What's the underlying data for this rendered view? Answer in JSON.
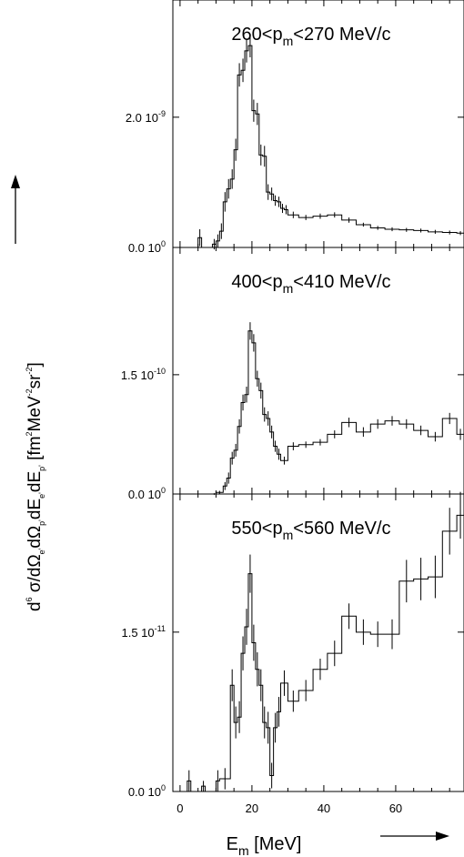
{
  "chart_data": [
    {
      "type": "histogram",
      "title_main": "260<p",
      "title_sub": "m",
      "title_tail": "<270 MeV/c",
      "ylim": [
        0,
        3.8e-09
      ],
      "yticks": [
        {
          "value": 0,
          "mant": "0.0 10",
          "exp": "0"
        },
        {
          "value": 2e-09,
          "mant": "2.0 10",
          "exp": "-9"
        }
      ],
      "bins": [
        {
          "x0": 5,
          "x1": 6,
          "y": 1.5e-10,
          "err": 1.3e-10
        },
        {
          "x0": 6,
          "x1": 9,
          "y": 0.0,
          "err": 0.0
        },
        {
          "x0": 9,
          "x1": 10,
          "y": 5e-11,
          "err": 8e-11
        },
        {
          "x0": 10,
          "x1": 11,
          "y": 1e-10,
          "err": 1e-10
        },
        {
          "x0": 11,
          "x1": 12,
          "y": 2.5e-10,
          "err": 1.2e-10
        },
        {
          "x0": 12,
          "x1": 13,
          "y": 7e-10,
          "err": 1.5e-10
        },
        {
          "x0": 13,
          "x1": 14,
          "y": 9e-10,
          "err": 1.5e-10
        },
        {
          "x0": 14,
          "x1": 15,
          "y": 1.05e-09,
          "err": 1.5e-10
        },
        {
          "x0": 15,
          "x1": 16,
          "y": 1.5e-09,
          "err": 1.7e-10
        },
        {
          "x0": 16,
          "x1": 17,
          "y": 2.65e-09,
          "err": 1.8e-10
        },
        {
          "x0": 17,
          "x1": 18,
          "y": 2.72e-09,
          "err": 1.8e-10
        },
        {
          "x0": 18,
          "x1": 19,
          "y": 3.02e-09,
          "err": 1.8e-10
        },
        {
          "x0": 19,
          "x1": 20,
          "y": 3.1e-09,
          "err": 1.8e-10
        },
        {
          "x0": 20,
          "x1": 21,
          "y": 2.1e-09,
          "err": 1.7e-10
        },
        {
          "x0": 21,
          "x1": 22,
          "y": 2.05e-09,
          "err": 1.7e-10
        },
        {
          "x0": 22,
          "x1": 23,
          "y": 1.42e-09,
          "err": 1.6e-10
        },
        {
          "x0": 23,
          "x1": 24,
          "y": 1.4e-09,
          "err": 1.6e-10
        },
        {
          "x0": 24,
          "x1": 25,
          "y": 8.5e-10,
          "err": 1.2e-10
        },
        {
          "x0": 25,
          "x1": 26,
          "y": 8.2e-10,
          "err": 1e-10
        },
        {
          "x0": 26,
          "x1": 27,
          "y": 7.2e-10,
          "err": 8e-11
        },
        {
          "x0": 27,
          "x1": 28,
          "y": 7e-10,
          "err": 8e-11
        },
        {
          "x0": 28,
          "x1": 29,
          "y": 6e-10,
          "err": 7e-11
        },
        {
          "x0": 29,
          "x1": 30,
          "y": 5.8e-10,
          "err": 7e-11
        },
        {
          "x0": 30,
          "x1": 33,
          "y": 5e-10,
          "err": 5e-11
        },
        {
          "x0": 33,
          "x1": 37,
          "y": 4.6e-10,
          "err": 4e-11
        },
        {
          "x0": 37,
          "x1": 41,
          "y": 4.8e-10,
          "err": 4e-11
        },
        {
          "x0": 41,
          "x1": 45,
          "y": 5e-10,
          "err": 4e-11
        },
        {
          "x0": 45,
          "x1": 49,
          "y": 4.2e-10,
          "err": 4e-11
        },
        {
          "x0": 49,
          "x1": 53,
          "y": 3.5e-10,
          "err": 3e-11
        },
        {
          "x0": 53,
          "x1": 57,
          "y": 3e-10,
          "err": 3e-11
        },
        {
          "x0": 57,
          "x1": 61,
          "y": 2.8e-10,
          "err": 3e-11
        },
        {
          "x0": 61,
          "x1": 65,
          "y": 2.7e-10,
          "err": 3e-11
        },
        {
          "x0": 65,
          "x1": 69,
          "y": 2.6e-10,
          "err": 3e-11
        },
        {
          "x0": 69,
          "x1": 73,
          "y": 2.4e-10,
          "err": 3e-11
        },
        {
          "x0": 73,
          "x1": 77,
          "y": 2.3e-10,
          "err": 3e-11
        },
        {
          "x0": 77,
          "x1": 79,
          "y": 2.2e-10,
          "err": 3e-11
        }
      ]
    },
    {
      "type": "histogram",
      "title_main": "400<p",
      "title_sub": "m",
      "title_tail": "<410 MeV/c",
      "ylim": [
        0,
        3.1e-10
      ],
      "yticks": [
        {
          "value": 0,
          "mant": "0.0 10",
          "exp": "0"
        },
        {
          "value": 1.5e-10,
          "mant": "1.5 10",
          "exp": "-10"
        }
      ],
      "bins": [
        {
          "x0": 9,
          "x1": 10,
          "y": 0.0,
          "err": 1e-12
        },
        {
          "x0": 10,
          "x1": 12,
          "y": 2e-12,
          "err": 2e-12
        },
        {
          "x0": 12,
          "x1": 13,
          "y": 1e-11,
          "err": 5e-12
        },
        {
          "x0": 13,
          "x1": 14,
          "y": 2e-11,
          "err": 7e-12
        },
        {
          "x0": 14,
          "x1": 15,
          "y": 4.5e-11,
          "err": 8e-12
        },
        {
          "x0": 15,
          "x1": 16,
          "y": 5.5e-11,
          "err": 8e-12
        },
        {
          "x0": 16,
          "x1": 17,
          "y": 8.5e-11,
          "err": 9e-12
        },
        {
          "x0": 17,
          "x1": 18,
          "y": 1.15e-10,
          "err": 1e-11
        },
        {
          "x0": 18,
          "x1": 19,
          "y": 1.25e-10,
          "err": 1e-11
        },
        {
          "x0": 19,
          "x1": 20,
          "y": 2.05e-10,
          "err": 1.1e-11
        },
        {
          "x0": 20,
          "x1": 21,
          "y": 1.9e-10,
          "err": 1.1e-11
        },
        {
          "x0": 21,
          "x1": 22,
          "y": 1.45e-10,
          "err": 1e-11
        },
        {
          "x0": 22,
          "x1": 23,
          "y": 1.3e-10,
          "err": 1e-11
        },
        {
          "x0": 23,
          "x1": 24,
          "y": 1e-10,
          "err": 9e-12
        },
        {
          "x0": 24,
          "x1": 25,
          "y": 9.5e-11,
          "err": 9e-12
        },
        {
          "x0": 25,
          "x1": 26,
          "y": 7.8e-11,
          "err": 8e-12
        },
        {
          "x0": 26,
          "x1": 27,
          "y": 6e-11,
          "err": 7e-12
        },
        {
          "x0": 27,
          "x1": 28,
          "y": 5e-11,
          "err": 7e-12
        },
        {
          "x0": 28,
          "x1": 30,
          "y": 4.2e-11,
          "err": 5e-12
        },
        {
          "x0": 30,
          "x1": 33,
          "y": 6e-11,
          "err": 5e-12
        },
        {
          "x0": 33,
          "x1": 37,
          "y": 6.2e-11,
          "err": 4e-12
        },
        {
          "x0": 37,
          "x1": 41,
          "y": 6.5e-11,
          "err": 4e-12
        },
        {
          "x0": 41,
          "x1": 45,
          "y": 7.5e-11,
          "err": 5e-12
        },
        {
          "x0": 45,
          "x1": 49,
          "y": 9e-11,
          "err": 6e-12
        },
        {
          "x0": 49,
          "x1": 53,
          "y": 7.8e-11,
          "err": 6e-12
        },
        {
          "x0": 53,
          "x1": 57,
          "y": 8.8e-11,
          "err": 6e-12
        },
        {
          "x0": 57,
          "x1": 61,
          "y": 9.2e-11,
          "err": 6e-12
        },
        {
          "x0": 61,
          "x1": 65,
          "y": 8.8e-11,
          "err": 6e-12
        },
        {
          "x0": 65,
          "x1": 69,
          "y": 8e-11,
          "err": 6e-12
        },
        {
          "x0": 69,
          "x1": 73,
          "y": 7.2e-11,
          "err": 6e-12
        },
        {
          "x0": 73,
          "x1": 77,
          "y": 9.5e-11,
          "err": 7e-12
        },
        {
          "x0": 77,
          "x1": 79,
          "y": 7.5e-11,
          "err": 7e-12
        }
      ]
    },
    {
      "type": "histogram",
      "title_main": "550<p",
      "title_sub": "m",
      "title_tail": "<560 MeV/c",
      "ylim": [
        0,
        2.8e-11
      ],
      "yticks": [
        {
          "value": 0,
          "mant": "0.0 10",
          "exp": "0"
        },
        {
          "value": 1.5e-11,
          "mant": "1.5 10",
          "exp": "-11"
        }
      ],
      "bins": [
        {
          "x0": 2,
          "x1": 3,
          "y": 1e-12,
          "err": 1e-12
        },
        {
          "x0": 3,
          "x1": 6,
          "y": 0.0,
          "err": 0.0
        },
        {
          "x0": 6,
          "x1": 7,
          "y": 5e-13,
          "err": 5e-13
        },
        {
          "x0": 7,
          "x1": 10,
          "y": 0.0,
          "err": 0.0
        },
        {
          "x0": 10,
          "x1": 11,
          "y": 1e-12,
          "err": 1e-12
        },
        {
          "x0": 11,
          "x1": 14,
          "y": 1.2e-12,
          "err": 1e-12
        },
        {
          "x0": 14,
          "x1": 15,
          "y": 1e-11,
          "err": 1.5e-12
        },
        {
          "x0": 15,
          "x1": 16,
          "y": 6.5e-12,
          "err": 1.5e-12
        },
        {
          "x0": 16,
          "x1": 17,
          "y": 7e-12,
          "err": 1.5e-12
        },
        {
          "x0": 17,
          "x1": 18,
          "y": 1.3e-11,
          "err": 1.6e-12
        },
        {
          "x0": 18,
          "x1": 19,
          "y": 1.55e-11,
          "err": 1.7e-12
        },
        {
          "x0": 19,
          "x1": 20,
          "y": 2.05e-11,
          "err": 1.8e-12
        },
        {
          "x0": 20,
          "x1": 21,
          "y": 1.4e-11,
          "err": 1.7e-12
        },
        {
          "x0": 21,
          "x1": 22,
          "y": 1.15e-11,
          "err": 1.6e-12
        },
        {
          "x0": 22,
          "x1": 23,
          "y": 1e-11,
          "err": 1.5e-12
        },
        {
          "x0": 23,
          "x1": 24,
          "y": 6.5e-12,
          "err": 1.5e-12
        },
        {
          "x0": 24,
          "x1": 25,
          "y": 6e-12,
          "err": 1.5e-12
        },
        {
          "x0": 25,
          "x1": 26,
          "y": 1.5e-12,
          "err": 1.2e-12
        },
        {
          "x0": 26,
          "x1": 27,
          "y": 6e-12,
          "err": 1.4e-12
        },
        {
          "x0": 27,
          "x1": 28,
          "y": 7.5e-12,
          "err": 1.4e-12
        },
        {
          "x0": 28,
          "x1": 30,
          "y": 1.02e-11,
          "err": 1.2e-12
        },
        {
          "x0": 30,
          "x1": 33,
          "y": 8.5e-12,
          "err": 1e-12
        },
        {
          "x0": 33,
          "x1": 37,
          "y": 9.5e-12,
          "err": 1e-12
        },
        {
          "x0": 37,
          "x1": 41,
          "y": 1.15e-11,
          "err": 1e-12
        },
        {
          "x0": 41,
          "x1": 45,
          "y": 1.3e-11,
          "err": 1.2e-12
        },
        {
          "x0": 45,
          "x1": 49,
          "y": 1.65e-11,
          "err": 1.2e-12
        },
        {
          "x0": 49,
          "x1": 53,
          "y": 1.5e-11,
          "err": 1.2e-12
        },
        {
          "x0": 53,
          "x1": 57,
          "y": 1.48e-11,
          "err": 1.2e-12
        },
        {
          "x0": 57,
          "x1": 61,
          "y": 1.48e-11,
          "err": 1.4e-12
        },
        {
          "x0": 61,
          "x1": 65,
          "y": 1.98e-11,
          "err": 2e-12
        },
        {
          "x0": 65,
          "x1": 69,
          "y": 2e-11,
          "err": 2e-12
        },
        {
          "x0": 69,
          "x1": 73,
          "y": 2.02e-11,
          "err": 2e-12
        },
        {
          "x0": 73,
          "x1": 77,
          "y": 2.45e-11,
          "err": 2.2e-12
        },
        {
          "x0": 77,
          "x1": 79,
          "y": 2.6e-11,
          "err": 2.2e-12
        }
      ]
    }
  ],
  "x_axis": {
    "xlim": [
      -2,
      79
    ],
    "ticks": [
      0,
      20,
      40,
      60
    ],
    "tick_labels": [
      "0",
      "20",
      "40",
      "60"
    ],
    "title_main": "E",
    "title_sub": "m",
    "title_tail": " [MeV]"
  },
  "y_axis": {
    "p1": "d",
    "p1_sup": "6",
    "p2": " σ/dΩ",
    "p2_sub": "e'",
    "p3": "dΩ",
    "p3_sub": "p'",
    "p4": "dE",
    "p4_sub": "e'",
    "p5": "dE",
    "p5_sub": "p'",
    "p6": " [fm",
    "p6_sup": "2",
    "p7": "MeV",
    "p7_sup": "-2",
    "p8": "sr",
    "p8_sup": "-2",
    "p9": "]"
  },
  "colors": {
    "line": "#000000",
    "background": "#ffffff"
  }
}
